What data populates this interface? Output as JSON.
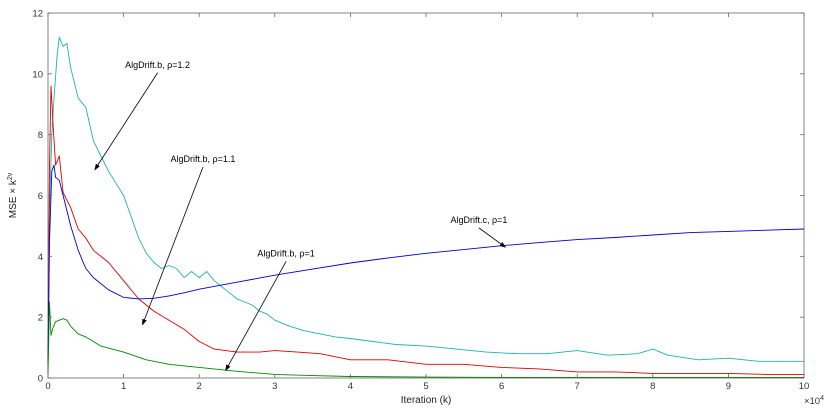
{
  "chart_data": {
    "type": "line",
    "xlabel": "Iteration (k)",
    "ylabel": "MSE × k",
    "ylabel_exponent": "2ν",
    "x_multiplier_base": "×10",
    "x_multiplier_exp": "4",
    "xlim": [
      0,
      10
    ],
    "ylim": [
      0,
      12
    ],
    "xticks": [
      "0",
      "1",
      "2",
      "3",
      "4",
      "5",
      "6",
      "7",
      "8",
      "9",
      "10"
    ],
    "yticks": [
      "0",
      "2",
      "4",
      "6",
      "8",
      "10",
      "12"
    ],
    "grid": false,
    "series": [
      {
        "color": "#20b2aa",
        "x": [
          0,
          0.02,
          0.05,
          0.08,
          0.12,
          0.15,
          0.2,
          0.25,
          0.3,
          0.4,
          0.5,
          0.6,
          0.7,
          0.8,
          0.9,
          1.0,
          1.1,
          1.2,
          1.3,
          1.4,
          1.5,
          1.6,
          1.7,
          1.8,
          1.9,
          2.0,
          2.1,
          2.2,
          2.3,
          2.4,
          2.5,
          2.6,
          2.7,
          2.8,
          2.9,
          3.0,
          3.2,
          3.4,
          3.6,
          3.8,
          4.0,
          4.3,
          4.6,
          5.0,
          5.4,
          5.8,
          6.2,
          6.6,
          7.0,
          7.4,
          7.8,
          8.0,
          8.2,
          8.6,
          9.0,
          9.4,
          9.8,
          10.0
        ],
        "y": [
          0.3,
          5.5,
          8.0,
          9.2,
          10.6,
          11.2,
          10.9,
          11.0,
          10.2,
          9.2,
          8.9,
          7.8,
          7.3,
          6.8,
          6.4,
          6.0,
          5.3,
          4.6,
          4.1,
          3.8,
          3.6,
          3.7,
          3.6,
          3.3,
          3.5,
          3.3,
          3.5,
          3.2,
          3.0,
          2.8,
          2.6,
          2.5,
          2.4,
          2.2,
          2.1,
          1.9,
          1.7,
          1.55,
          1.45,
          1.35,
          1.3,
          1.2,
          1.1,
          1.05,
          0.95,
          0.85,
          0.8,
          0.8,
          0.9,
          0.75,
          0.8,
          0.95,
          0.75,
          0.6,
          0.65,
          0.55,
          0.55,
          0.55
        ]
      },
      {
        "color": "#dd0000",
        "x": [
          0,
          0.02,
          0.04,
          0.07,
          0.1,
          0.15,
          0.2,
          0.3,
          0.4,
          0.5,
          0.6,
          0.8,
          1.0,
          1.2,
          1.4,
          1.6,
          1.8,
          2.0,
          2.2,
          2.5,
          2.8,
          3.0,
          3.3,
          3.6,
          4.0,
          4.5,
          5.0,
          5.5,
          6.0,
          6.5,
          7.0,
          7.5,
          8.0,
          8.5,
          9.0,
          9.5,
          10.0
        ],
        "y": [
          0.2,
          7.0,
          9.6,
          8.2,
          7.0,
          7.3,
          6.1,
          5.6,
          4.9,
          4.6,
          4.2,
          3.8,
          3.2,
          2.6,
          2.2,
          1.9,
          1.6,
          1.2,
          0.95,
          0.85,
          0.85,
          0.9,
          0.85,
          0.8,
          0.6,
          0.6,
          0.45,
          0.45,
          0.35,
          0.3,
          0.2,
          0.2,
          0.15,
          0.15,
          0.15,
          0.12,
          0.12
        ]
      },
      {
        "color": "#0000cc",
        "x": [
          0,
          0.02,
          0.05,
          0.08,
          0.1,
          0.15,
          0.2,
          0.3,
          0.4,
          0.5,
          0.6,
          0.8,
          1.0,
          1.2,
          1.4,
          1.6,
          1.8,
          2.0,
          2.5,
          3.0,
          3.5,
          4.0,
          4.5,
          5.0,
          5.5,
          6.0,
          6.5,
          7.0,
          7.5,
          8.0,
          8.5,
          9.0,
          9.5,
          10.0
        ],
        "y": [
          0.5,
          4.5,
          6.8,
          7.0,
          6.6,
          6.5,
          6.0,
          5.0,
          4.2,
          3.6,
          3.3,
          2.9,
          2.65,
          2.6,
          2.62,
          2.7,
          2.8,
          2.92,
          3.15,
          3.38,
          3.58,
          3.78,
          3.95,
          4.1,
          4.22,
          4.35,
          4.45,
          4.55,
          4.62,
          4.7,
          4.78,
          4.82,
          4.86,
          4.9
        ]
      },
      {
        "color": "#008800",
        "x": [
          0,
          0.02,
          0.04,
          0.06,
          0.1,
          0.15,
          0.2,
          0.25,
          0.3,
          0.4,
          0.5,
          0.7,
          1.0,
          1.3,
          1.6,
          2.0,
          2.5,
          3.0,
          3.5,
          4.0,
          5.0,
          6.0,
          7.0,
          8.0,
          9.0,
          10.0
        ],
        "y": [
          0.1,
          2.5,
          1.4,
          1.6,
          1.85,
          1.9,
          1.95,
          1.9,
          1.7,
          1.45,
          1.35,
          1.05,
          0.85,
          0.6,
          0.45,
          0.35,
          0.22,
          0.12,
          0.08,
          0.05,
          0.03,
          0.02,
          0.02,
          0.02,
          0.02,
          0.02
        ]
      }
    ],
    "annotations": [
      {
        "text": "AlgDrift.b, ρ=1.2",
        "tx": 1.45,
        "ty": 10.2,
        "ax": 0.62,
        "ay": 6.85
      },
      {
        "text": "AlgDrift.b, ρ=1.1",
        "tx": 2.05,
        "ty": 7.1,
        "ax": 1.25,
        "ay": 1.75
      },
      {
        "text": "AlgDrift.c, ρ=1",
        "tx": 5.7,
        "ty": 5.1,
        "ax": 6.05,
        "ay": 4.3
      },
      {
        "text": "AlgDrift.b, ρ=1",
        "tx": 3.15,
        "ty": 4.0,
        "ax": 2.35,
        "ay": 0.25
      }
    ]
  }
}
